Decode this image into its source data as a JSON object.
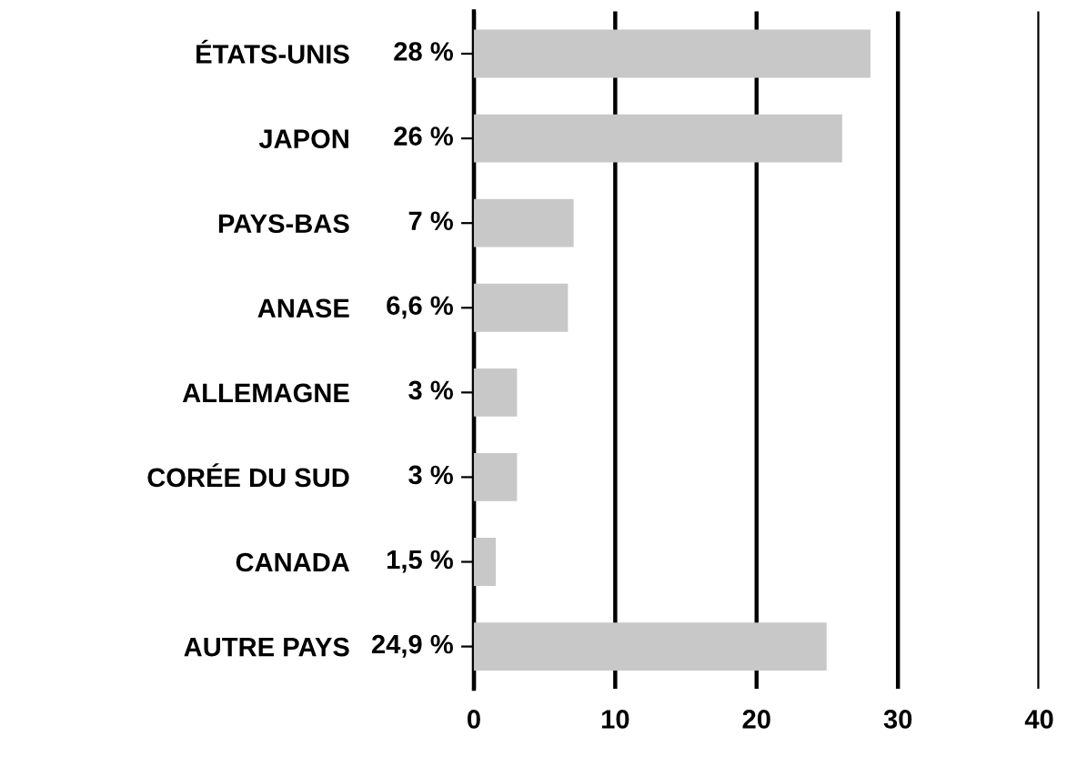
{
  "chart_data": {
    "type": "bar",
    "orientation": "horizontal",
    "categories": [
      "ÉTATS-UNIS",
      "JAPON",
      "PAYS-BAS",
      "ANASE",
      "ALLEMAGNE",
      "CORÉE DU SUD",
      "CANADA",
      "AUTRE PAYS"
    ],
    "values": [
      28,
      26,
      7,
      6.6,
      3,
      3,
      1.5,
      24.9
    ],
    "value_labels": [
      "28 %",
      "26 %",
      "7 %",
      "6,6 %",
      "3 %",
      "3 %",
      "1,5 %",
      "24,9 %"
    ],
    "color": "#c8c8c8",
    "xlim": [
      0,
      40
    ],
    "xticks": [
      0,
      10,
      20,
      30,
      40
    ],
    "grid": "x"
  }
}
